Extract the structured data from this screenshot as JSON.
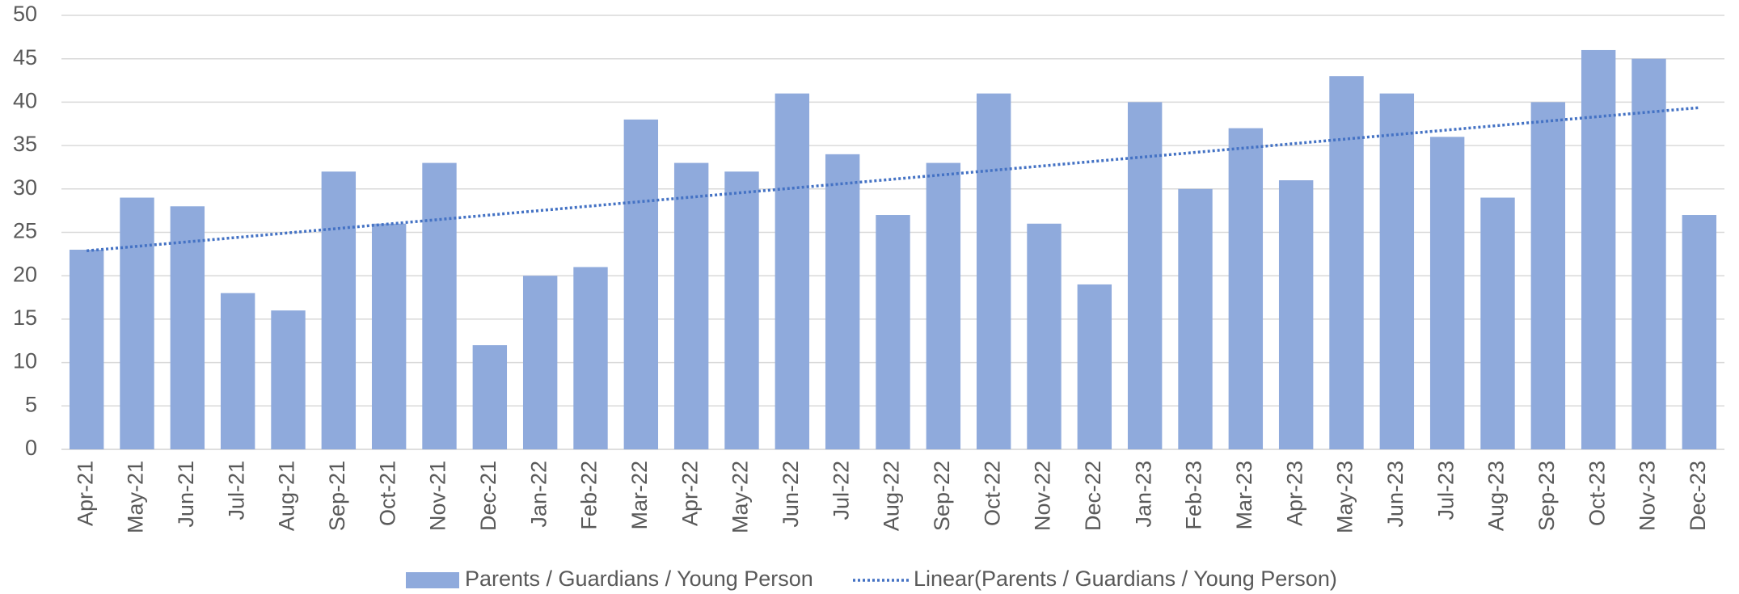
{
  "chart_data": {
    "type": "bar",
    "categories": [
      "Apr-21",
      "May-21",
      "Jun-21",
      "Jul-21",
      "Aug-21",
      "Sep-21",
      "Oct-21",
      "Nov-21",
      "Dec-21",
      "Jan-22",
      "Feb-22",
      "Mar-22",
      "Apr-22",
      "May-22",
      "Jun-22",
      "Jul-22",
      "Aug-22",
      "Sep-22",
      "Oct-22",
      "Nov-22",
      "Dec-22",
      "Jan-23",
      "Feb-23",
      "Mar-23",
      "Apr-23",
      "May-23",
      "Jun-23",
      "Jul-23",
      "Aug-23",
      "Sep-23",
      "Oct-23",
      "Nov-23",
      "Dec-23"
    ],
    "series": [
      {
        "name": "Parents / Guardians / Young Person",
        "color": "#8faadc",
        "values": [
          23,
          29,
          28,
          18,
          16,
          32,
          26,
          33,
          12,
          20,
          21,
          38,
          33,
          32,
          41,
          34,
          27,
          33,
          41,
          26,
          19,
          40,
          30,
          37,
          31,
          43,
          41,
          36,
          29,
          40,
          46,
          45,
          27
        ]
      }
    ],
    "trendline": {
      "name": "Linear(Parents / Guardians / Young Person)",
      "color": "#4472c4"
    },
    "ylim": [
      0,
      50
    ],
    "yticks": [
      0,
      5,
      10,
      15,
      20,
      25,
      30,
      35,
      40,
      45,
      50
    ],
    "grid": true,
    "legend": "bottom"
  }
}
